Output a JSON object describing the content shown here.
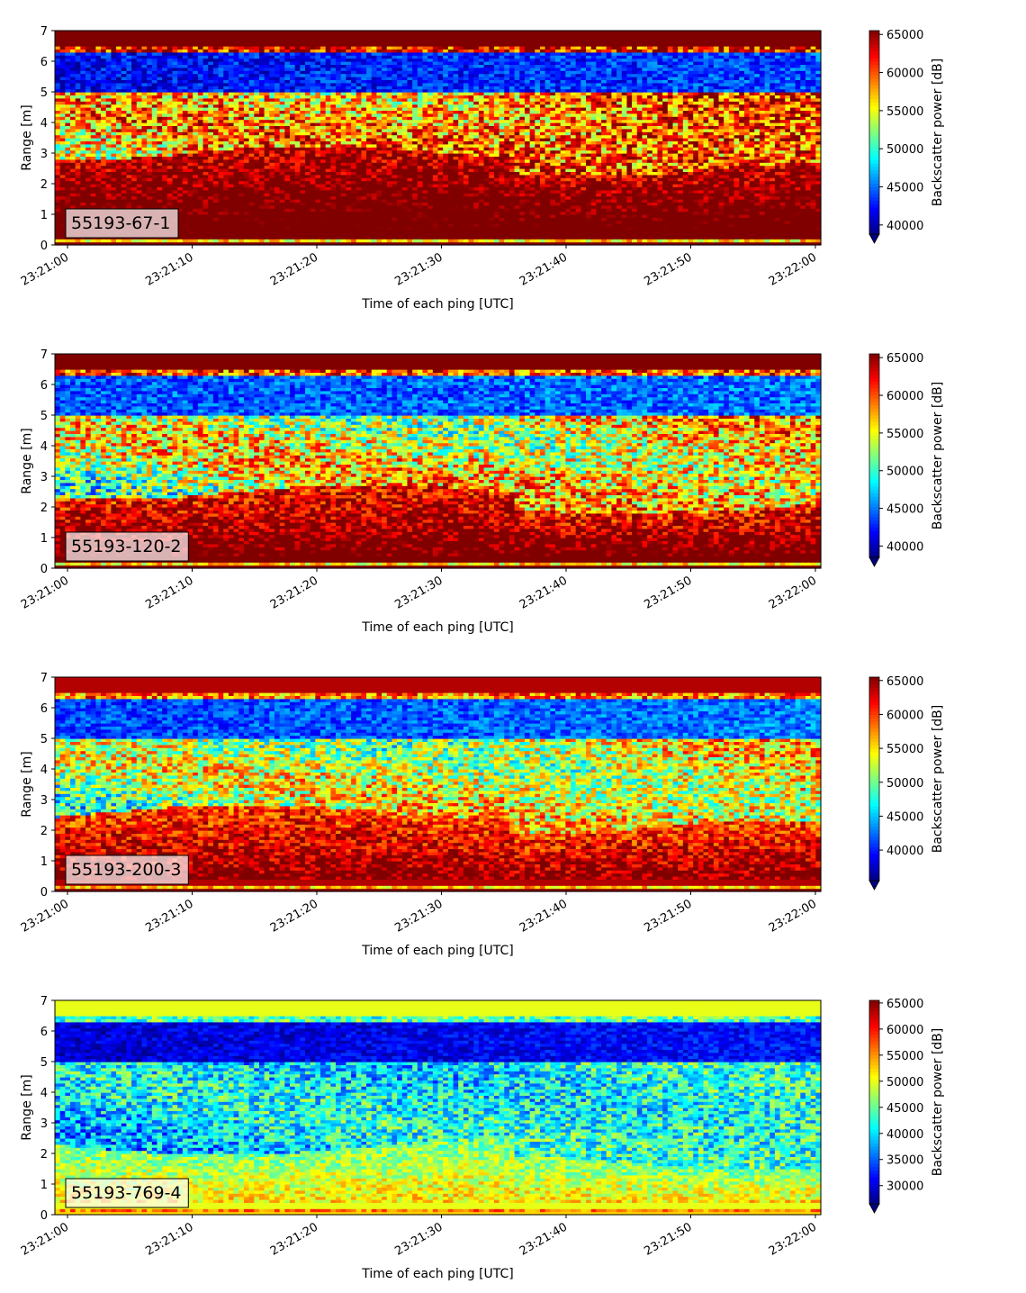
{
  "chart_data": [
    {
      "type": "heatmap",
      "label": "55193-67-1",
      "xlabel": "Time of each ping [UTC]",
      "ylabel": "Range [m]",
      "x_ticks": [
        "23:21:00",
        "23:21:10",
        "23:21:20",
        "23:21:30",
        "23:21:40",
        "23:21:50",
        "23:22:00"
      ],
      "y_ticks": [
        0,
        1,
        2,
        3,
        4,
        5,
        6,
        7
      ],
      "ylim": [
        0,
        7
      ],
      "colorbar": {
        "label": "Backscatter power [dB]",
        "min": 38800,
        "max": 65500,
        "ticks": [
          40000,
          45000,
          50000,
          55000,
          60000,
          65000
        ]
      },
      "profile": {
        "seed": 11,
        "cutoff": 3.0,
        "base": 0.4,
        "low": 42000,
        "lowT": 44000,
        "bright": 62000,
        "strong": 68000
      }
    },
    {
      "type": "heatmap",
      "label": "55193-120-2",
      "xlabel": "Time of each ping [UTC]",
      "ylabel": "Range [m]",
      "x_ticks": [
        "23:21:00",
        "23:21:10",
        "23:21:20",
        "23:21:30",
        "23:21:40",
        "23:21:50",
        "23:22:00"
      ],
      "y_ticks": [
        0,
        1,
        2,
        3,
        4,
        5,
        6,
        7
      ],
      "ylim": [
        0,
        7
      ],
      "colorbar": {
        "label": "Backscatter power [dB]",
        "min": 38500,
        "max": 65500,
        "ticks": [
          40000,
          45000,
          50000,
          55000,
          60000,
          65000
        ]
      },
      "profile": {
        "seed": 23,
        "cutoff": 2.5,
        "base": 0.12,
        "low": 44000,
        "lowT": 45000,
        "bright": 60000,
        "strong": 66000
      }
    },
    {
      "type": "heatmap",
      "label": "55193-200-3",
      "xlabel": "Time of each ping [UTC]",
      "ylabel": "Range [m]",
      "x_ticks": [
        "23:21:00",
        "23:21:10",
        "23:21:20",
        "23:21:30",
        "23:21:40",
        "23:21:50",
        "23:22:00"
      ],
      "y_ticks": [
        0,
        1,
        2,
        3,
        4,
        5,
        6,
        7
      ],
      "ylim": [
        0,
        7
      ],
      "colorbar": {
        "label": "Backscatter power [dB]",
        "min": 35500,
        "max": 65500,
        "ticks": [
          40000,
          45000,
          50000,
          55000,
          60000,
          65000
        ]
      },
      "profile": {
        "seed": 37,
        "cutoff": 2.6,
        "base": 0.12,
        "low": 41000,
        "lowT": 43000,
        "bright": 58000,
        "strong": 64000
      }
    },
    {
      "type": "heatmap",
      "label": "55193-769-4",
      "xlabel": "Time of each ping [UTC]",
      "ylabel": "Range [m]",
      "x_ticks": [
        "23:21:00",
        "23:21:10",
        "23:21:20",
        "23:21:30",
        "23:21:40",
        "23:21:50",
        "23:22:00"
      ],
      "y_ticks": [
        0,
        1,
        2,
        3,
        4,
        5,
        6,
        7
      ],
      "ylim": [
        0,
        7
      ],
      "colorbar": {
        "label": "Backscatter power [dB]",
        "min": 26500,
        "max": 65500,
        "ticks": [
          30000,
          35000,
          40000,
          45000,
          50000,
          55000,
          60000,
          65000
        ]
      },
      "profile": {
        "seed": 53,
        "cutoff": 2.2,
        "base": 0.35,
        "low": 29500,
        "lowT": 32000,
        "bright": 44000,
        "strong": 50000
      }
    }
  ]
}
